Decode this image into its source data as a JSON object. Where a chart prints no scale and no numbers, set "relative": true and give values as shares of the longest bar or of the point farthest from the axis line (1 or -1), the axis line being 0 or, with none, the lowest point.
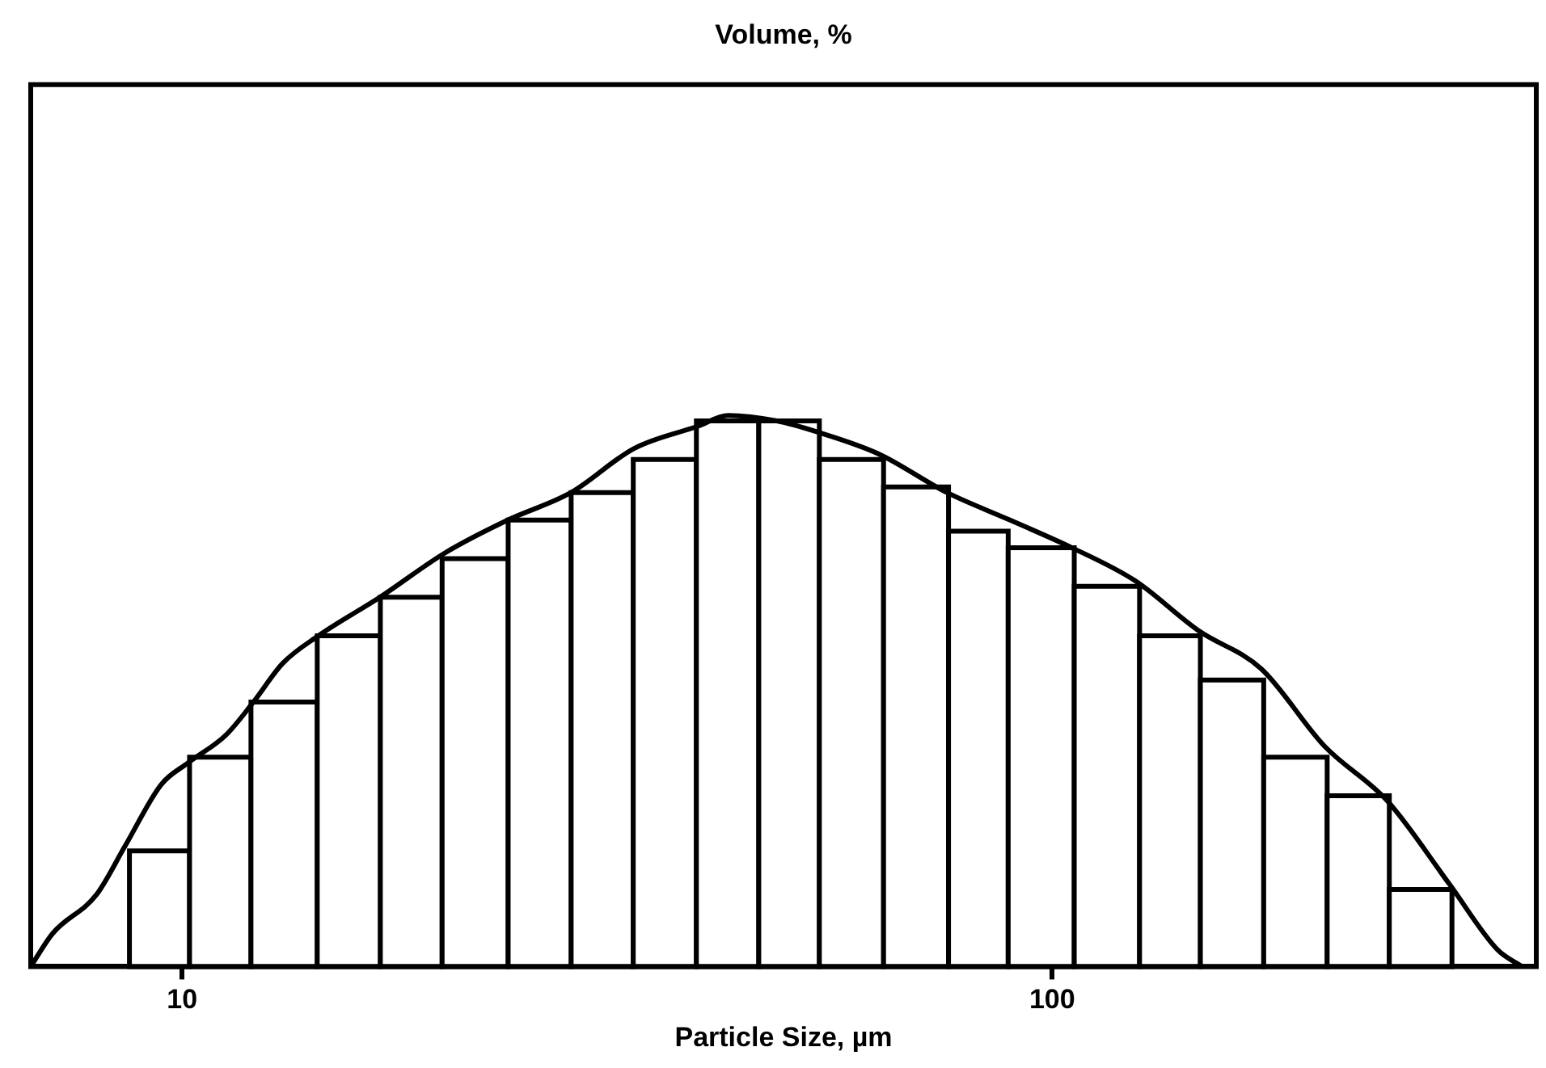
{
  "chart_data": {
    "type": "histogram",
    "title": "Volume, %",
    "xlabel": "Particle Size, µm",
    "relative": true,
    "log": "x",
    "grid": false,
    "legend": false,
    "marker": "none",
    "xlim": [
      6.7,
      360
    ],
    "xticks": [
      10,
      100
    ],
    "series": [
      {
        "color": "#ffffff",
        "bins": [
          8.7,
          10.2,
          12,
          14.3,
          16.9,
          19.9,
          23.7,
          28,
          33,
          39,
          46,
          54,
          64,
          76,
          89,
          106,
          126,
          148,
          175,
          207,
          244,
          288
        ],
        "values": [
          0.21,
          0.38,
          0.48,
          0.6,
          0.67,
          0.74,
          0.81,
          0.86,
          0.92,
          0.99,
          0.99,
          0.92,
          0.87,
          0.79,
          0.76,
          0.69,
          0.6,
          0.52,
          0.38,
          0.31,
          0.14
        ]
      },
      {
        "type": "line",
        "color": "#000000",
        "x": [
          6.7,
          7.1,
          7.97,
          8.61,
          9.46,
          10.17,
          11.23,
          12.08,
          13.05,
          14.34,
          16.88,
          20.03,
          23.67,
          27.99,
          33.08,
          39.1,
          42.43,
          48.25,
          53.7,
          63.2,
          75.68,
          89.45,
          105.3,
          124.5,
          147.1,
          173.9,
          205.5,
          242.9,
          285.9,
          325.1,
          346.7
        ],
        "values": [
          0,
          0.06,
          0.13,
          0.22,
          0.33,
          0.37,
          0.42,
          0.48,
          0.55,
          0.6,
          0.67,
          0.75,
          0.81,
          0.86,
          0.94,
          0.98,
          1,
          0.99,
          0.97,
          0.93,
          0.86,
          0.81,
          0.76,
          0.7,
          0.61,
          0.54,
          0.4,
          0.3,
          0.15,
          0.03,
          0
        ]
      }
    ]
  }
}
